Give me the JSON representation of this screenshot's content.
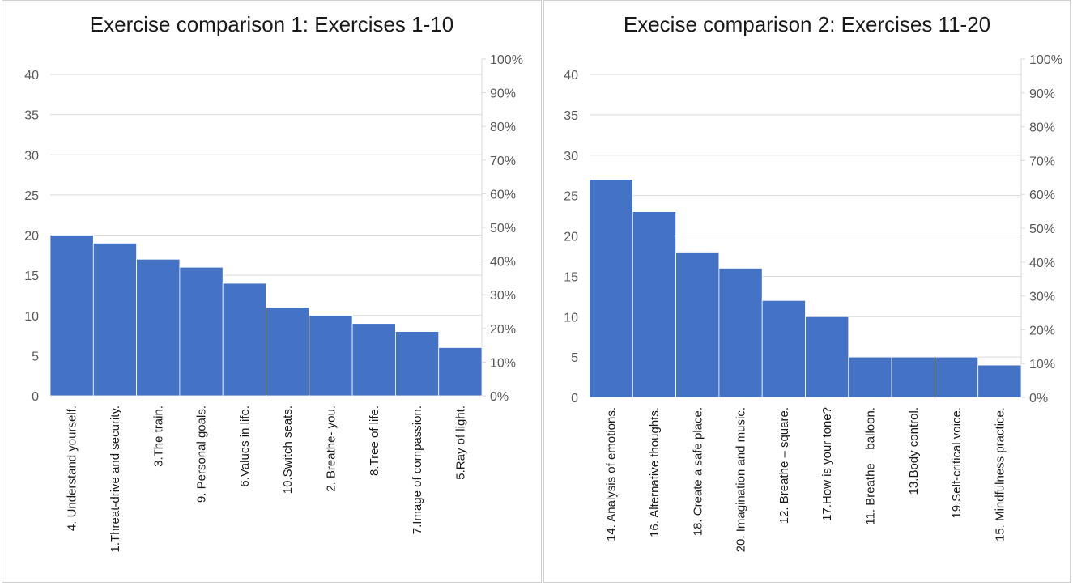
{
  "chart_data": [
    {
      "type": "bar",
      "title": "Exercise comparison 1: Exercises 1-10",
      "categories": [
        "4. Understand yourself.",
        "1.Threat-drive and security.",
        "3.The train.",
        "9. Personal goals.",
        "6.Values in life.",
        "10.Switch seats.",
        "2. Breathe- you.",
        "8.Tree of life.",
        "7.Image of compassion.",
        "5.Ray of light."
      ],
      "values": [
        20,
        19,
        17,
        16,
        14,
        11,
        10,
        9,
        8,
        6
      ],
      "ylim": [
        0,
        40
      ],
      "y_ticks": [
        "0",
        "5",
        "10",
        "15",
        "20",
        "25",
        "30",
        "35",
        "40"
      ],
      "y2_ticks": [
        "0%",
        "10%",
        "20%",
        "30%",
        "40%",
        "50%",
        "60%",
        "70%",
        "80%",
        "90%",
        "100%"
      ],
      "bar_color": "#4472C4",
      "grid": true
    },
    {
      "type": "bar",
      "title": "Execise comparison 2: Exercises 11-20",
      "categories": [
        "14. Analysis of emotions.",
        "16. Alternative thoughts.",
        "18. Create a safe place.",
        "20. Imagination and music.",
        "12. Breathe – square.",
        "17.How is your tone?",
        "11. Breathe – balloon.",
        "13.Body control.",
        "19.Self-critical voice.",
        "15. Mindfulness practice."
      ],
      "values": [
        27,
        23,
        18,
        16,
        12,
        10,
        5,
        5,
        5,
        4
      ],
      "ylim": [
        0,
        40
      ],
      "y_ticks": [
        "0",
        "5",
        "10",
        "15",
        "20",
        "25",
        "30",
        "35",
        "40"
      ],
      "y2_ticks": [
        "0%",
        "10%",
        "20%",
        "30%",
        "40%",
        "50%",
        "60%",
        "70%",
        "80%",
        "90%",
        "100%"
      ],
      "bar_color": "#4472C4",
      "grid": true
    }
  ]
}
